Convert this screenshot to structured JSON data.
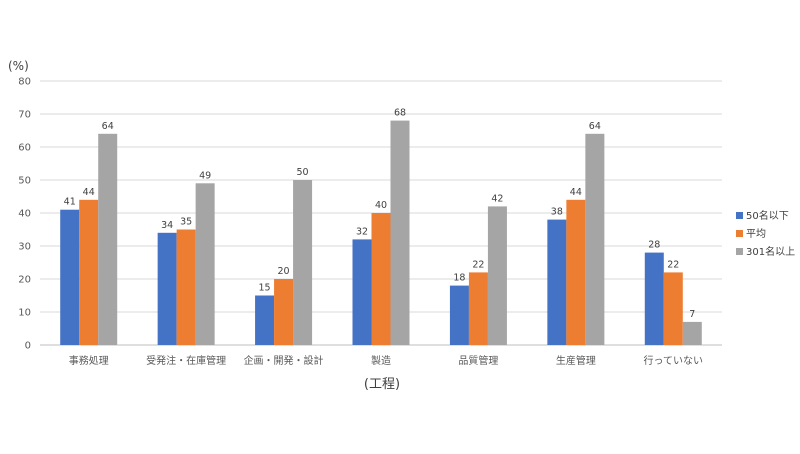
{
  "chart_data": {
    "type": "bar",
    "unit_label": "(%)",
    "xlabel": "(工程)",
    "ylim": [
      0,
      80
    ],
    "yticks": [
      0,
      10,
      20,
      30,
      40,
      50,
      60,
      70,
      80
    ],
    "grid": true,
    "legend_position": "right",
    "categories": [
      "事務処理",
      "受発注・在庫管理",
      "企画・開発・設計",
      "製造",
      "品質管理",
      "生産管理",
      "行っていない"
    ],
    "series": [
      {
        "name": "50名以下",
        "color": "#4472C4",
        "values": [
          41,
          34,
          15,
          32,
          18,
          38,
          28
        ]
      },
      {
        "name": "平均",
        "color": "#ED7D31",
        "values": [
          44,
          35,
          20,
          40,
          22,
          44,
          22
        ]
      },
      {
        "name": "301名以上",
        "color": "#A5A5A5",
        "values": [
          64,
          49,
          50,
          68,
          42,
          64,
          7
        ]
      }
    ]
  }
}
